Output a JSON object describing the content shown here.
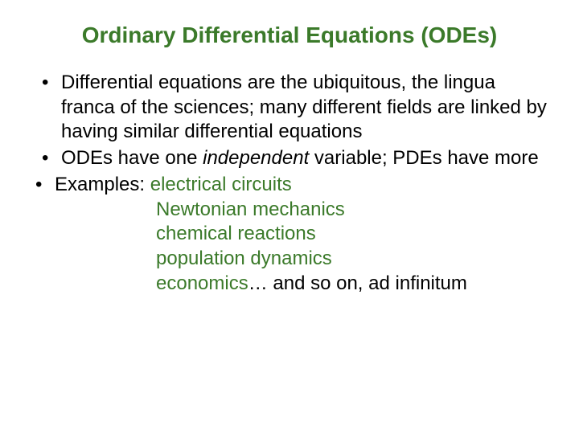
{
  "colors": {
    "title": "#3b7a2a",
    "body_text": "#000000",
    "accent": "#3b7a2a",
    "background": "#ffffff"
  },
  "typography": {
    "title_fontsize_pt": 21,
    "body_fontsize_pt": 18,
    "font_family": "Arial"
  },
  "title": "Ordinary Differential Equations (ODEs)",
  "bullets": {
    "b1": "Differential equations are the ubiquitous, the lingua franca of the sciences; many different fields are linked by having similar differential equations",
    "b2_pre": "ODEs have one ",
    "b2_italic": "independent",
    "b2_post": " variable; PDEs have more",
    "b3_label": "Examples: ",
    "b3_items": {
      "i0": "electrical circuits",
      "i1": "Newtonian mechanics",
      "i2": "chemical reactions",
      "i3": "population dynamics",
      "i4_pre": "economics",
      "i4_post": "… and so on, ad infinitum"
    }
  }
}
